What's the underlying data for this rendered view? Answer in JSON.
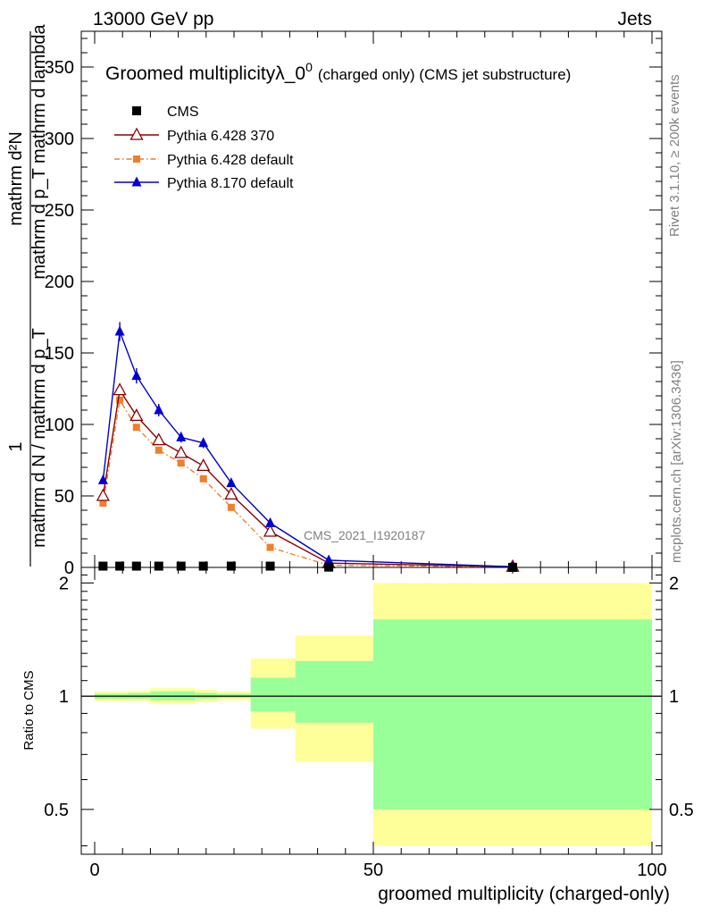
{
  "header": {
    "energy_label": "13000 GeV pp",
    "category_label": "Jets"
  },
  "side_labels": {
    "rivet": "Rivet 3.1.10, ≥ 200k events",
    "mcplots": "mcplots.cern.ch [arXiv:1306.3436]"
  },
  "watermark": "CMS_2021_I1920187",
  "colors": {
    "cms": "#000000",
    "pythia6_370": "#8b0000",
    "pythia6_default": "#f07f2a",
    "pythia8": "#0000d0",
    "band_inner": "#99ff99",
    "band_outer": "#ffff99"
  },
  "chart_data": [
    {
      "type": "line",
      "title": "Groomed multiplicityλ_0⁰ (charged only) (CMS jet substructure)",
      "title_main": "Groomed multiplicityλ_0",
      "title_sup": "0",
      "title_rest": "(charged only) (CMS jet substructure)",
      "ylabel_fraction_numerator": "1",
      "ylabel_denominator": "mathrm d N / mathrm d p_T",
      "ylabel_numerator_2": "mathrm d²N",
      "ylabel_denominator_2": "mathrm d p_T mathrm d lambda",
      "xlim": [
        0,
        100
      ],
      "ylim": [
        0,
        375
      ],
      "yticks": [
        0,
        50,
        100,
        150,
        200,
        250,
        300,
        350
      ],
      "ytick_labels": [
        "0",
        "50",
        "100",
        "150",
        "200",
        "250",
        "300",
        "350"
      ],
      "legend_position": "top-left",
      "series": [
        {
          "name": "CMS",
          "key": "cms",
          "marker": "square",
          "x": [
            1.5,
            4.5,
            7.5,
            11.5,
            15.5,
            19.5,
            24.5,
            31.5,
            42,
            75
          ],
          "values": [
            0.9,
            0.9,
            0.9,
            0.9,
            0.9,
            0.9,
            0.9,
            0.9,
            0.2,
            0.05
          ]
        },
        {
          "name": "Pythia 6.428 370",
          "key": "pythia6_370",
          "marker": "open-triangle",
          "x": [
            1.5,
            4.5,
            7.5,
            11.5,
            15.5,
            19.5,
            24.5,
            31.5,
            42,
            75
          ],
          "values": [
            50,
            124,
            106,
            89,
            80,
            71,
            51,
            25,
            3,
            0.5
          ]
        },
        {
          "name": "Pythia 6.428 default",
          "key": "pythia6_default",
          "marker": "filled-square",
          "x": [
            1.5,
            4.5,
            7.5,
            11.5,
            15.5,
            19.5,
            24.5,
            31.5,
            42,
            75
          ],
          "values": [
            45,
            117,
            98,
            82,
            73,
            62,
            42,
            14,
            1.5,
            0.3
          ]
        },
        {
          "name": "Pythia 8.170 default",
          "key": "pythia8",
          "marker": "filled-triangle",
          "x": [
            1.5,
            4.5,
            7.5,
            11.5,
            15.5,
            19.5,
            24.5,
            31.5,
            42,
            75
          ],
          "values": [
            61,
            165,
            134,
            110,
            91,
            87,
            59,
            31,
            5,
            0.5
          ]
        }
      ]
    },
    {
      "type": "area",
      "title": "",
      "xlabel": "groomed multiplicity (charged-only)",
      "ylabel": "Ratio to CMS",
      "xlim": [
        -4,
        101
      ],
      "ylim": [
        0.38,
        2.2
      ],
      "xticks": [
        0,
        50,
        100
      ],
      "xtick_labels": [
        "0",
        "50",
        "100"
      ],
      "yticks": [
        0.5,
        1,
        2
      ],
      "ytick_labels": [
        "0.5",
        "1",
        "2"
      ],
      "reference_line": 1,
      "bands": [
        {
          "x0": 0,
          "x1": 3,
          "inner": [
            0.985,
            1.015
          ],
          "outer": [
            0.97,
            1.03
          ]
        },
        {
          "x0": 3,
          "x1": 6,
          "inner": [
            0.985,
            1.015
          ],
          "outer": [
            0.97,
            1.03
          ]
        },
        {
          "x0": 6,
          "x1": 10,
          "inner": [
            0.985,
            1.02
          ],
          "outer": [
            0.97,
            1.035
          ]
        },
        {
          "x0": 10,
          "x1": 14,
          "inner": [
            0.975,
            1.03
          ],
          "outer": [
            0.955,
            1.05
          ]
        },
        {
          "x0": 14,
          "x1": 18,
          "inner": [
            0.975,
            1.03
          ],
          "outer": [
            0.955,
            1.05
          ]
        },
        {
          "x0": 18,
          "x1": 22,
          "inner": [
            0.985,
            1.02
          ],
          "outer": [
            0.965,
            1.04
          ]
        },
        {
          "x0": 22,
          "x1": 28,
          "inner": [
            0.99,
            1.015
          ],
          "outer": [
            0.975,
            1.03
          ]
        },
        {
          "x0": 28,
          "x1": 36,
          "inner": [
            0.91,
            1.12
          ],
          "outer": [
            0.82,
            1.26
          ]
        },
        {
          "x0": 36,
          "x1": 50,
          "inner": [
            0.85,
            1.24
          ],
          "outer": [
            0.67,
            1.45
          ]
        },
        {
          "x0": 50,
          "x1": 100,
          "inner": [
            0.5,
            1.6
          ],
          "outer": [
            0.4,
            2.0
          ]
        }
      ]
    }
  ]
}
